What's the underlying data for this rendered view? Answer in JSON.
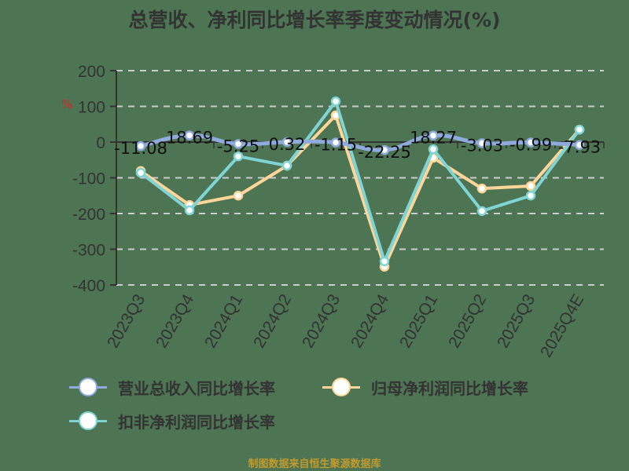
{
  "title": "总营收、净利同比增长率季度变动情况(%)",
  "footer": "制图数据来自恒生聚源数据库",
  "y_unit_label": "%",
  "legend": [
    {
      "label": "营业总收入同比增长率",
      "color": "#8faadc"
    },
    {
      "label": "归母净利润同比增长率",
      "color": "#ffd699"
    },
    {
      "label": "扣非净利润同比增长率",
      "color": "#80d4d4"
    }
  ],
  "chart_data": {
    "type": "line",
    "title": "总营收、净利同比增长率季度变动情况(%)",
    "xlabel": "",
    "ylabel": "%",
    "ylim": [
      -400,
      200
    ],
    "yticks": [
      200,
      100,
      0,
      -100,
      -200,
      -300,
      -400
    ],
    "grid": true,
    "legend_position": "bottom",
    "categories": [
      "2023Q3",
      "2023Q4",
      "2024Q1",
      "2024Q2",
      "2024Q3",
      "2024Q4",
      "2025Q1",
      "2025Q2",
      "2025Q3",
      "2025Q4E"
    ],
    "series": [
      {
        "name": "营业总收入同比增长率",
        "color": "#8faadc",
        "smooth": true,
        "values": [
          -11.08,
          18.69,
          -5.25,
          0.32,
          -1.15,
          -22.25,
          18.27,
          -3.03,
          -0.99,
          -7.93
        ],
        "labels": [
          "-11.08",
          "18.69",
          "-5.25",
          "0.32",
          "-1.15",
          "-22.25",
          "18.27",
          "-3.03",
          "-0.99",
          "-7.93"
        ]
      },
      {
        "name": "归母净利润同比增长率",
        "color": "#ffd699",
        "values": [
          -81,
          -176,
          -150,
          -66,
          75,
          -349,
          -44,
          -130,
          -123,
          35
        ]
      },
      {
        "name": "扣非净利润同比增长率",
        "color": "#80d4d4",
        "values": [
          -86,
          -191,
          -40,
          -66,
          114,
          -334,
          -20,
          -193,
          -150,
          35
        ]
      }
    ]
  }
}
